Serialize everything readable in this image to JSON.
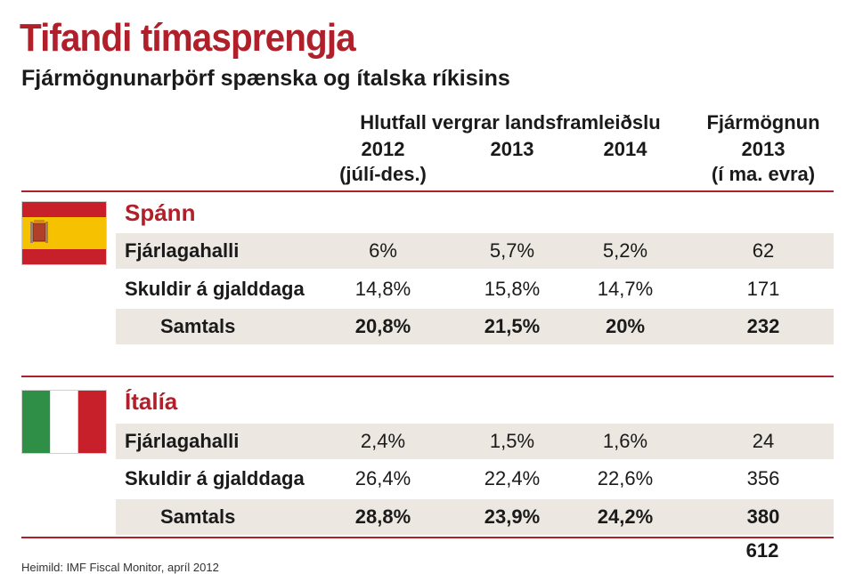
{
  "title": "Tifandi tímasprengja",
  "subtitle": "Fjármögnunarþörf spænska og ítalska ríkisins",
  "header": {
    "group_label": "Hlutfall vergrar landsframleiðslu",
    "col_2012": "2012",
    "col_2012_note": "(júlí-des.)",
    "col_2013": "2013",
    "col_2014": "2014",
    "funding_line1": "Fjármögnun",
    "funding_line2": "2013",
    "funding_line3": "(í ma. evra)"
  },
  "colors": {
    "accent": "#b0202a",
    "shade": "#ece7e1"
  },
  "chart_data": {
    "type": "table",
    "title": "Tifandi tímasprengja",
    "subtitle": "Fjármögnunarþörf spænska og ítalska ríkisins",
    "columns": [
      "2012 (júlí-des.)",
      "2013",
      "2014",
      "Fjármögnun 2013 (í ma. evra)"
    ],
    "sections": [
      {
        "name": "Spánn",
        "flag": "spain-flag",
        "rows": [
          {
            "label": "Fjárlagahalli",
            "values": [
              "6%",
              "5,7%",
              "5,2%",
              "62"
            ],
            "shaded": true,
            "total": false
          },
          {
            "label": "Skuldir á gjalddaga",
            "values": [
              "14,8%",
              "15,8%",
              "14,7%",
              "171"
            ],
            "shaded": false,
            "total": false
          },
          {
            "label": "Samtals",
            "values": [
              "20,8%",
              "21,5%",
              "20%",
              "232"
            ],
            "shaded": true,
            "total": true
          }
        ]
      },
      {
        "name": "Ítalía",
        "flag": "italy-flag",
        "rows": [
          {
            "label": "Fjárlagahalli",
            "values": [
              "2,4%",
              "1,5%",
              "1,6%",
              "24"
            ],
            "shaded": true,
            "total": false
          },
          {
            "label": "Skuldir á gjalddaga",
            "values": [
              "26,4%",
              "22,4%",
              "22,6%",
              "356"
            ],
            "shaded": false,
            "total": false
          },
          {
            "label": "Samtals",
            "values": [
              "28,8%",
              "23,9%",
              "24,2%",
              "380"
            ],
            "shaded": true,
            "total": true
          }
        ]
      }
    ],
    "grand_total": "612"
  },
  "source": "Heimild: IMF Fiscal Monitor, apríl 2012"
}
